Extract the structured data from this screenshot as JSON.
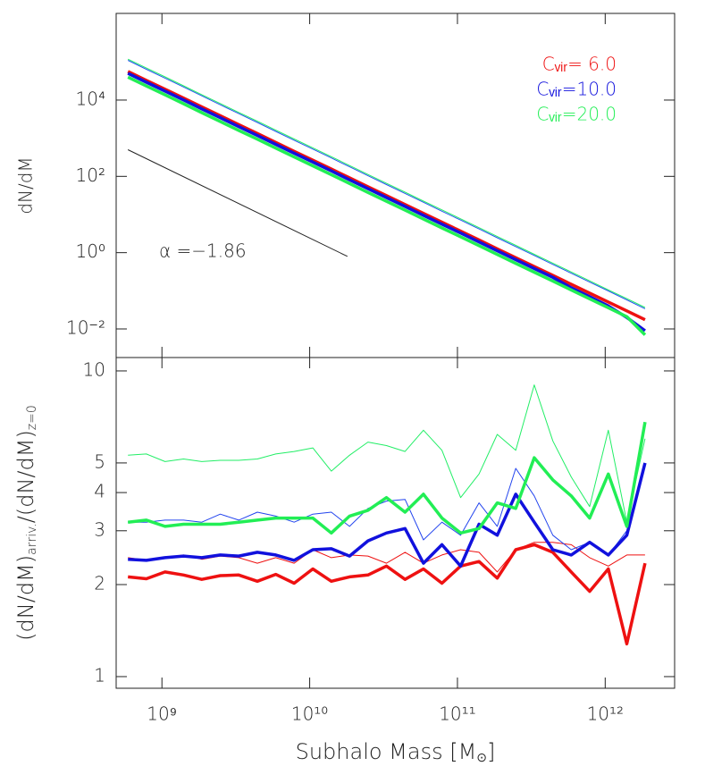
{
  "chart_data": [
    {
      "type": "line",
      "y_label": "dN/dM",
      "xscale": "log",
      "yscale": "log",
      "xlim": [
        490000000,
        2950000000000
      ],
      "ylim": [
        0.00178,
        1870000
      ],
      "xticks": [
        {
          "value": 1000000000,
          "label": "10⁹"
        },
        {
          "value": 10000000000,
          "label": "10¹⁰"
        },
        {
          "value": 100000000000,
          "label": "10¹¹"
        },
        {
          "value": 1000000000000,
          "label": "10¹²"
        }
      ],
      "yticks": [
        {
          "value": 0.01,
          "label": "10⁻²"
        },
        {
          "value": 1,
          "label": "10⁰"
        },
        {
          "value": 100,
          "label": "10²"
        },
        {
          "value": 10000,
          "label": "10⁴"
        }
      ],
      "legend": "upper right",
      "annotation": "α =−1.86",
      "x": [
        589000000,
        785000000,
        1050000000,
        1400000000,
        1860000000,
        2480000000,
        3310000000,
        4420000000,
        5890000000,
        7850000000,
        10500000000,
        14000000000,
        18600000000,
        24800000000,
        33100000000,
        44200000000,
        58900000000,
        78500000000,
        105000000000,
        140000000000,
        186000000000,
        248000000000,
        331000000000,
        442000000000,
        589000000000,
        785000000000,
        1050000000000,
        1400000000000,
        1860000000000
      ],
      "reference_line": {
        "x": [
          589000000,
          18000000000
        ],
        "values": [
          500,
          0.8
        ],
        "color": "#222222"
      },
      "series": [
        {
          "color": "#2255ee",
          "linewidth": 1,
          "values": [
            110000,
            64200,
            37600,
            22000,
            12900,
            7550,
            4410,
            2590,
            1510,
            885,
            519,
            304,
            178,
            104,
            61.0,
            35.7,
            20.9,
            12.2,
            7.16,
            4.19,
            2.46,
            1.44,
            0.842,
            0.493,
            0.289,
            0.169,
            0.0989,
            0.0579,
            0.0339
          ]
        },
        {
          "color": "#22ee66",
          "linewidth": 1,
          "values": [
            118000,
            69100,
            40500,
            23700,
            13900,
            8130,
            4750,
            2790,
            1630,
            953,
            559,
            328,
            192,
            112,
            65.7,
            38.4,
            22.5,
            13.2,
            7.71,
            4.52,
            2.65,
            1.55,
            0.907,
            0.531,
            0.311,
            0.182,
            0.106,
            0.0624,
            0.0365
          ]
        },
        {
          "name": "Cᵥᵢᵣ=  6.0",
          "color": "#ee1111",
          "linewidth": 3.5,
          "values": [
            56200,
            32900,
            19300,
            11300,
            6610,
            3870,
            2260,
            1330,
            776,
            454,
            266,
            156,
            91.2,
            53.4,
            31.3,
            18.3,
            10.7,
            6.27,
            3.67,
            2.15,
            1.26,
            0.737,
            0.432,
            0.253,
            0.148,
            0.0866,
            0.0507,
            0.0297,
            0.0174
          ]
        },
        {
          "name": "Cᵥᵢᵣ=10.0",
          "color": "#1111dd",
          "linewidth": 3.5,
          "values": [
            50000,
            29300,
            17200,
            10100,
            5880,
            3440,
            2010,
            1180,
            691,
            404,
            237,
            139,
            81.2,
            47.5,
            27.9,
            16.3,
            9.52,
            5.58,
            3.27,
            1.91,
            1.12,
            0.656,
            0.384,
            0.225,
            0.12,
            0.07,
            0.04,
            0.02,
            0.009
          ]
        },
        {
          "name": "Cᵥᵢᵣ=20.0",
          "color": "#22ee55",
          "linewidth": 3.5,
          "values": [
            39900,
            23400,
            13700,
            8020,
            4690,
            2750,
            1600,
            944,
            551,
            322,
            189,
            111,
            64.8,
            37.9,
            22.2,
            13.0,
            7.6,
            4.45,
            2.61,
            1.53,
            0.895,
            0.523,
            0.307,
            0.18,
            0.105,
            0.0615,
            0.036,
            0.021,
            0.007
          ]
        }
      ]
    },
    {
      "type": "line",
      "y_label": [
        "(dN/dM)",
        "arriv.",
        "/(dN/dM)",
        "z=0"
      ],
      "x_label": [
        "Subhalo Mass [M",
        "⊙",
        "]"
      ],
      "xscale": "log",
      "yscale": "log",
      "xlim": [
        490000000,
        2950000000000
      ],
      "ylim": [
        0.916,
        11.06
      ],
      "xticks": [
        {
          "value": 1000000000,
          "label": "10⁹"
        },
        {
          "value": 10000000000,
          "label": "10¹⁰"
        },
        {
          "value": 100000000000,
          "label": "10¹¹"
        },
        {
          "value": 1000000000000,
          "label": "10¹²"
        }
      ],
      "yticks": [
        1,
        2,
        3,
        4,
        5,
        10
      ],
      "x": [
        589000000,
        785000000,
        1050000000,
        1400000000,
        1860000000,
        2480000000,
        3310000000,
        4420000000,
        5890000000,
        7850000000,
        10500000000,
        14000000000,
        18600000000,
        24800000000,
        33100000000,
        44200000000,
        58900000000,
        78500000000,
        105000000000,
        140000000000,
        186000000000,
        248000000000,
        331000000000,
        442000000000,
        589000000000,
        785000000000,
        1050000000000,
        1400000000000,
        1860000000000
      ],
      "series": [
        {
          "color": "#ee1111",
          "linewidth": 1,
          "values": [
            2.45,
            2.4,
            2.45,
            2.5,
            2.42,
            2.48,
            2.45,
            2.35,
            2.45,
            2.35,
            2.6,
            2.45,
            2.5,
            2.48,
            2.35,
            2.55,
            2.35,
            2.5,
            2.6,
            2.55,
            2.2,
            2.6,
            2.75,
            2.75,
            2.7,
            2.45,
            2.3,
            2.5,
            2.5
          ]
        },
        {
          "color": "#2244ee",
          "linewidth": 1,
          "values": [
            3.2,
            3.2,
            3.25,
            3.25,
            3.2,
            3.4,
            3.25,
            3.45,
            3.35,
            3.2,
            3.4,
            3.45,
            3.1,
            3.55,
            3.75,
            3.8,
            2.8,
            3.2,
            2.9,
            3.7,
            3.1,
            4.8,
            3.9,
            2.9,
            2.6,
            2.75,
            2.5,
            3.0,
            4.9
          ]
        },
        {
          "color": "#22ee66",
          "linewidth": 1,
          "values": [
            5.3,
            5.35,
            5.05,
            5.15,
            5.05,
            5.1,
            5.1,
            5.15,
            5.35,
            5.45,
            5.6,
            4.7,
            5.3,
            5.85,
            5.7,
            5.45,
            6.4,
            5.5,
            3.85,
            4.6,
            6.2,
            5.5,
            9.0,
            5.9,
            4.5,
            3.6,
            6.4,
            3.2,
            6.0
          ]
        },
        {
          "color": "#ee1111",
          "linewidth": 3.5,
          "values": [
            2.12,
            2.09,
            2.2,
            2.15,
            2.08,
            2.14,
            2.15,
            2.05,
            2.16,
            2.02,
            2.25,
            2.05,
            2.12,
            2.15,
            2.3,
            2.08,
            2.25,
            2.02,
            2.3,
            2.38,
            2.1,
            2.6,
            2.7,
            2.55,
            2.2,
            1.9,
            2.25,
            1.28,
            2.35
          ]
        },
        {
          "color": "#1111dd",
          "linewidth": 3.5,
          "values": [
            2.42,
            2.4,
            2.45,
            2.48,
            2.45,
            2.5,
            2.48,
            2.55,
            2.5,
            2.4,
            2.6,
            2.62,
            2.48,
            2.78,
            2.95,
            3.05,
            2.35,
            2.7,
            2.3,
            3.15,
            2.9,
            3.95,
            3.2,
            2.6,
            2.5,
            2.75,
            2.5,
            2.9,
            5.0
          ]
        },
        {
          "color": "#22ee55",
          "linewidth": 3.5,
          "values": [
            3.2,
            3.25,
            3.1,
            3.15,
            3.15,
            3.15,
            3.2,
            3.25,
            3.3,
            3.3,
            3.3,
            2.95,
            3.35,
            3.5,
            3.85,
            3.45,
            3.95,
            3.3,
            2.95,
            3.05,
            3.7,
            3.55,
            5.2,
            4.4,
            3.9,
            3.3,
            4.6,
            3.1,
            6.8
          ]
        }
      ]
    }
  ]
}
